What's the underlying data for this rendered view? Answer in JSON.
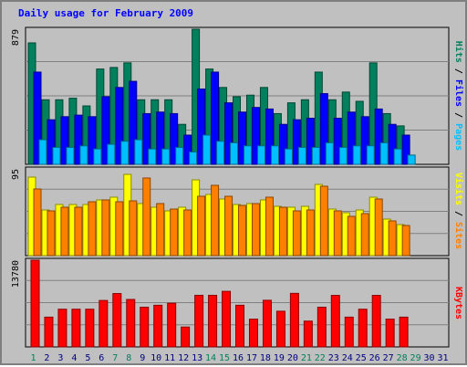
{
  "title": "Daily usage for February 2009",
  "colors": {
    "hits": "#00805c",
    "files": "#0000ff",
    "pages": "#00c0ff",
    "visits": "#ffff00",
    "sites": "#ff8000",
    "kbytes": "#ff0000",
    "weekend_label": "#00805c",
    "weekday_label": "#000080"
  },
  "chart_data": [
    {
      "type": "bar",
      "name_label": "hits-files-pages",
      "ymax_label": "879",
      "ylim": [
        0,
        879
      ],
      "x": [
        1,
        2,
        3,
        4,
        5,
        6,
        7,
        8,
        9,
        10,
        11,
        12,
        13,
        14,
        15,
        16,
        17,
        18,
        19,
        20,
        21,
        22,
        23,
        24,
        25,
        26,
        27,
        28,
        29,
        30,
        31
      ],
      "series": [
        {
          "name": "Hits",
          "values": [
            790,
            420,
            420,
            430,
            380,
            620,
            630,
            660,
            420,
            420,
            420,
            260,
            879,
            620,
            500,
            440,
            450,
            500,
            330,
            400,
            420,
            600,
            420,
            470,
            410,
            660,
            330,
            250,
            0,
            0,
            0
          ]
        },
        {
          "name": "Files",
          "values": [
            600,
            290,
            310,
            320,
            310,
            440,
            500,
            540,
            330,
            340,
            330,
            190,
            490,
            600,
            400,
            340,
            370,
            360,
            260,
            290,
            300,
            460,
            300,
            340,
            310,
            360,
            260,
            190,
            0,
            0,
            0
          ]
        },
        {
          "name": "Pages",
          "values": [
            160,
            110,
            110,
            120,
            100,
            130,
            150,
            160,
            100,
            100,
            110,
            80,
            190,
            150,
            140,
            120,
            120,
            120,
            100,
            110,
            110,
            140,
            110,
            120,
            120,
            140,
            100,
            60,
            0,
            0,
            0
          ]
        }
      ]
    },
    {
      "type": "bar",
      "name_label": "visits-sites",
      "ymax_label": "95",
      "ylim": [
        0,
        95
      ],
      "x": [
        1,
        2,
        3,
        4,
        5,
        6,
        7,
        8,
        9,
        10,
        11,
        12,
        13,
        14,
        15,
        16,
        17,
        18,
        19,
        20,
        21,
        22,
        23,
        24,
        25,
        26,
        27,
        28,
        29,
        30,
        31
      ],
      "series": [
        {
          "name": "Visits",
          "values": [
            86,
            50,
            56,
            56,
            56,
            61,
            64,
            89,
            57,
            53,
            49,
            53,
            83,
            67,
            62,
            56,
            57,
            61,
            54,
            53,
            54,
            78,
            51,
            47,
            50,
            64,
            40,
            34,
            0,
            0,
            0
          ]
        },
        {
          "name": "Sites",
          "values": [
            73,
            49,
            53,
            53,
            59,
            61,
            59,
            60,
            85,
            57,
            51,
            50,
            65,
            77,
            65,
            55,
            57,
            64,
            53,
            49,
            50,
            76,
            49,
            43,
            46,
            62,
            38,
            33,
            0,
            0,
            0
          ]
        }
      ]
    },
    {
      "type": "bar",
      "name_label": "kbytes",
      "ymax_label": "13780",
      "ylim": [
        0,
        13780
      ],
      "x": [
        1,
        2,
        3,
        4,
        5,
        6,
        7,
        8,
        9,
        10,
        11,
        12,
        13,
        14,
        15,
        16,
        17,
        18,
        19,
        20,
        21,
        22,
        23,
        24,
        25,
        26,
        27,
        28,
        29,
        30,
        31
      ],
      "series": [
        {
          "name": "KBytes",
          "values": [
            13780,
            4730,
            5990,
            5990,
            5990,
            7380,
            8480,
            7540,
            6310,
            6620,
            6940,
            3160,
            8200,
            8200,
            8830,
            6620,
            4410,
            7410,
            5670,
            8510,
            4100,
            6310,
            8190,
            4730,
            5990,
            8190,
            4420,
            4730,
            0,
            0,
            0
          ]
        }
      ]
    }
  ],
  "labels": {
    "pages": "Pages",
    "files": "Files",
    "hits": "Hits",
    "sites": "Sites",
    "visits": "Visits",
    "kbytes": "KBytes",
    "slash": "/"
  },
  "weekend_days": [
    1,
    7,
    8,
    14,
    15,
    21,
    22,
    28,
    29
  ]
}
